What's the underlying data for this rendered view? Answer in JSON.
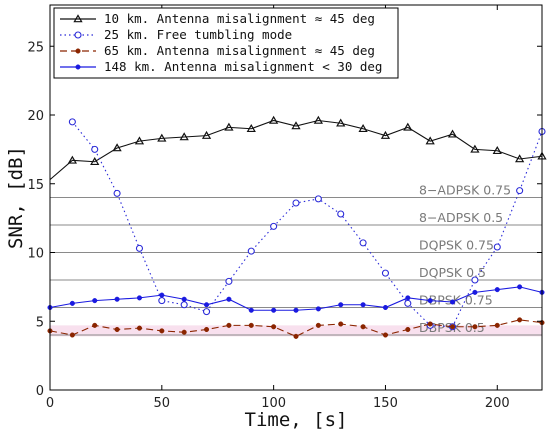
{
  "chart_data": {
    "type": "line",
    "xlabel": "Time, [s]",
    "ylabel": "SNR, [dB]",
    "xlim": [
      0,
      220
    ],
    "ylim": [
      0,
      28
    ],
    "xticks": [
      0,
      50,
      100,
      150,
      200
    ],
    "yticks": [
      0,
      5,
      10,
      15,
      20,
      25
    ],
    "grid": false,
    "legend_position": "top-left",
    "thresholds": [
      {
        "label": "8−ADPSK 0.75",
        "value": 14
      },
      {
        "label": "8−ADPSK 0.5",
        "value": 12
      },
      {
        "label": "DQPSK 0.75",
        "value": 10
      },
      {
        "label": "DQPSK 0.5",
        "value": 8
      },
      {
        "label": "DBPSK 0.75",
        "value": 6
      },
      {
        "label": "DBPSK 0.5",
        "value": 4
      }
    ],
    "series": [
      {
        "name": "10 km. Antenna misalignment ≈ 45 deg",
        "color": "#111111",
        "marker": "triangle",
        "dash": "solid",
        "x": [
          0,
          10,
          20,
          30,
          40,
          50,
          60,
          70,
          80,
          90,
          100,
          110,
          120,
          130,
          140,
          150,
          160,
          170,
          180,
          190,
          200,
          210,
          220
        ],
        "y": [
          15.3,
          16.7,
          16.6,
          17.6,
          18.1,
          18.3,
          18.4,
          18.5,
          19.1,
          19.0,
          19.6,
          19.2,
          19.6,
          19.4,
          19.0,
          18.5,
          19.1,
          18.1,
          18.6,
          17.5,
          17.4,
          16.8,
          17.0
        ]
      },
      {
        "name": "25 km. Free tumbling mode",
        "color": "#2a2ad8",
        "marker": "circle",
        "dash": "dotted",
        "x": [
          10,
          20,
          30,
          40,
          50,
          60,
          70,
          80,
          90,
          100,
          110,
          120,
          130,
          140,
          150,
          160,
          170,
          180,
          190,
          200,
          210,
          220
        ],
        "y": [
          19.5,
          17.5,
          14.3,
          10.3,
          6.5,
          6.2,
          5.7,
          7.9,
          10.1,
          11.9,
          13.6,
          13.9,
          12.8,
          10.7,
          8.5,
          6.3,
          4.7,
          4.6,
          8.0,
          10.4,
          14.5,
          18.8
        ]
      },
      {
        "name": "65 km. Antenna misalignment ≈ 45 deg",
        "color": "#8b2500",
        "marker": "dot",
        "dash": "dashed",
        "x": [
          0,
          10,
          20,
          30,
          40,
          50,
          60,
          70,
          80,
          90,
          100,
          110,
          120,
          130,
          140,
          150,
          160,
          170,
          180,
          190,
          200,
          210,
          220
        ],
        "y": [
          4.3,
          4.0,
          4.7,
          4.4,
          4.5,
          4.3,
          4.2,
          4.4,
          4.7,
          4.7,
          4.6,
          3.9,
          4.7,
          4.8,
          4.6,
          4.0,
          4.4,
          4.8,
          4.6,
          4.6,
          4.7,
          5.1,
          4.9
        ]
      },
      {
        "name": "148 km. Antenna misalignment < 30 deg",
        "color": "#1a1ae0",
        "marker": "dot",
        "dash": "solid",
        "x": [
          0,
          10,
          20,
          30,
          40,
          50,
          60,
          70,
          80,
          90,
          100,
          110,
          120,
          130,
          140,
          150,
          160,
          170,
          180,
          190,
          200,
          210,
          220
        ],
        "y": [
          6.0,
          6.3,
          6.5,
          6.6,
          6.7,
          6.9,
          6.6,
          6.2,
          6.6,
          5.8,
          5.8,
          5.8,
          5.9,
          6.2,
          6.2,
          6.0,
          6.7,
          6.5,
          6.4,
          7.1,
          7.3,
          7.5,
          7.1
        ]
      }
    ]
  }
}
